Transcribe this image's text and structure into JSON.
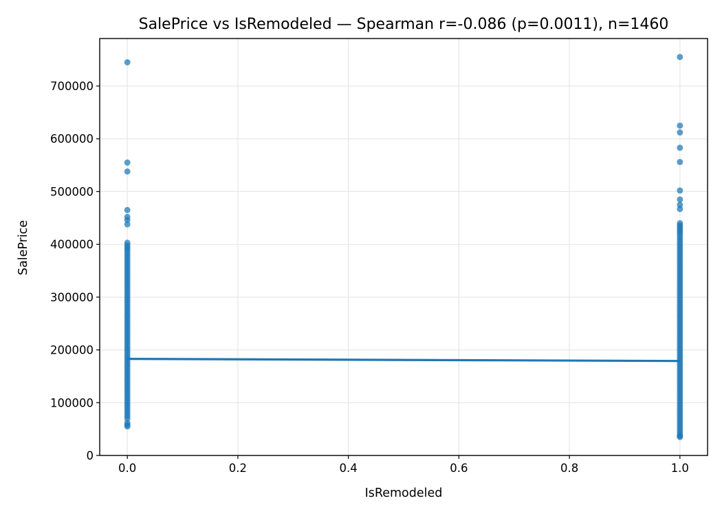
{
  "chart_data": {
    "type": "scatter",
    "title": "SalePrice vs IsRemodeled — Spearman r=-0.086 (p=0.0011), n=1460",
    "xlabel": "IsRemodeled",
    "ylabel": "SalePrice",
    "xlim": [
      -0.05,
      1.05
    ],
    "ylim": [
      0,
      790000
    ],
    "xticks": [
      0.0,
      0.2,
      0.4,
      0.6,
      0.8,
      1.0
    ],
    "xtick_labels": [
      "0.0",
      "0.2",
      "0.4",
      "0.6",
      "0.8",
      "1.0"
    ],
    "yticks": [
      0,
      100000,
      200000,
      300000,
      400000,
      500000,
      600000,
      700000
    ],
    "ytick_labels": [
      "0",
      "100000",
      "200000",
      "300000",
      "400000",
      "500000",
      "600000",
      "700000"
    ],
    "grid": true,
    "colors": {
      "points": "#1f77b4",
      "line": "#1f77b4"
    },
    "series": [
      {
        "x": 0,
        "values": [
          745000,
          555000,
          538000,
          465000,
          452000,
          446000,
          438000,
          403000,
          398000,
          394000,
          390000,
          385000,
          380000,
          375000,
          370000,
          365000,
          360000,
          355000,
          350000,
          345000,
          340000,
          335000,
          330000,
          325000,
          320000,
          315000,
          310000,
          305000,
          300000,
          295000,
          290000,
          285000,
          280000,
          275000,
          270000,
          265000,
          260000,
          255000,
          250000,
          245000,
          240000,
          235000,
          230000,
          225000,
          220000,
          215000,
          210000,
          205000,
          200000,
          195000,
          190000,
          185000,
          180000,
          175000,
          170000,
          165000,
          160000,
          155000,
          150000,
          145000,
          140000,
          135000,
          130000,
          125000,
          120000,
          115000,
          110000,
          105000,
          100000,
          95000,
          90000,
          85000,
          80000,
          75000,
          70000,
          62000,
          58000,
          55000
        ]
      },
      {
        "x": 1,
        "values": [
          755000,
          625000,
          612000,
          583000,
          556000,
          502000,
          485000,
          475000,
          467000,
          440000,
          436000,
          432000,
          428000,
          424000,
          420000,
          415000,
          410000,
          405000,
          400000,
          395000,
          390000,
          385000,
          380000,
          375000,
          370000,
          365000,
          360000,
          355000,
          350000,
          345000,
          340000,
          335000,
          330000,
          325000,
          320000,
          315000,
          310000,
          305000,
          300000,
          295000,
          290000,
          285000,
          280000,
          275000,
          270000,
          265000,
          260000,
          255000,
          250000,
          245000,
          240000,
          235000,
          230000,
          225000,
          220000,
          215000,
          210000,
          205000,
          200000,
          195000,
          190000,
          185000,
          180000,
          175000,
          170000,
          165000,
          160000,
          155000,
          150000,
          145000,
          140000,
          135000,
          130000,
          125000,
          120000,
          115000,
          110000,
          105000,
          100000,
          95000,
          90000,
          85000,
          80000,
          75000,
          70000,
          65000,
          60000,
          55000,
          50000,
          45000,
          40000,
          37000,
          35000
        ]
      }
    ],
    "regression_line": {
      "x": [
        0,
        1
      ],
      "y": [
        183000,
        179000
      ]
    }
  }
}
